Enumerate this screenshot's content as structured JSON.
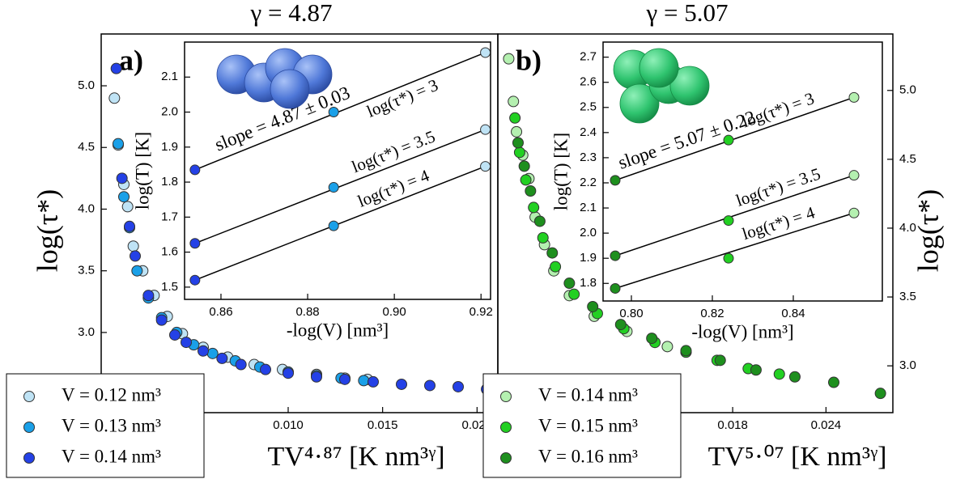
{
  "chart_data": [
    {
      "type": "scatter",
      "title": "γ = 4.87",
      "panel_label": "a)",
      "x_label": "TV⁴·⁸⁷ [K nm³ᵞ]",
      "y_label": "log(τ*)",
      "y_axis_side": "left",
      "legend": "lower left",
      "xlim": [
        0.0001,
        0.0211
      ],
      "xticks": [
        {
          "value": 0.01,
          "label": "0.010"
        },
        {
          "value": 0.015,
          "label": "0.015"
        },
        {
          "value": 0.02,
          "label": "0.020"
        }
      ],
      "ylim": [
        2.35,
        5.42
      ],
      "yticks": [
        {
          "value": 3,
          "label": "3.0"
        },
        3.5,
        {
          "value": 4,
          "label": "4.0"
        },
        4.5,
        {
          "value": 5,
          "label": "5.0"
        }
      ],
      "series": [
        {
          "name": "V = 0.12 nm³",
          "color": "#bfe3f5",
          "x": [
            0.0008,
            0.001,
            0.0013,
            0.0015,
            0.0018,
            0.0023,
            0.0029,
            0.0036,
            0.0044,
            0.0055,
            0.0068,
            0.0082,
            0.0097,
            0.0115,
            0.013,
            0.0142
          ],
          "values": [
            4.9,
            4.52,
            4.2,
            4.02,
            3.7,
            3.5,
            3.3,
            3.13,
            2.99,
            2.88,
            2.8,
            2.74,
            2.7,
            2.66,
            2.63,
            2.62
          ]
        },
        {
          "name": "V = 0.13 nm³",
          "color": "#1aa0e8",
          "x": [
            0.001,
            0.0013,
            0.0016,
            0.002,
            0.0026,
            0.0033,
            0.0041,
            0.005,
            0.006,
            0.0072,
            0.0085,
            0.01,
            0.0115,
            0.0128,
            0.014
          ],
          "values": [
            4.53,
            4.1,
            3.85,
            3.5,
            3.28,
            3.12,
            3,
            2.9,
            2.83,
            2.77,
            2.72,
            2.68,
            2.65,
            2.63,
            2.61
          ]
        },
        {
          "name": "V = 0.14 nm³",
          "color": "#2441e6",
          "x": [
            0.0009,
            0.0012,
            0.0016,
            0.0019,
            0.0026,
            0.0033,
            0.004,
            0.0046,
            0.0055,
            0.0065,
            0.0075,
            0.0088,
            0.01,
            0.0115,
            0.013,
            0.0145,
            0.016,
            0.0175,
            0.019,
            0.0205
          ],
          "values": [
            5.14,
            4.25,
            3.86,
            3.62,
            3.3,
            3.1,
            2.98,
            2.92,
            2.85,
            2.79,
            2.74,
            2.7,
            2.67,
            2.64,
            2.62,
            2.6,
            2.58,
            2.57,
            2.56,
            2.54
          ]
        }
      ]
    },
    {
      "type": "scatter",
      "inset": true,
      "x_label": "-log(V) [nm³]",
      "y_label": "log(T) [K]",
      "annotation": "slope = 4.87 ± 0.03",
      "xlim": [
        0.8516,
        0.9222
      ],
      "xticks": [
        0.86,
        0.88,
        {
          "value": 0.9,
          "label": "0.90"
        },
        0.92
      ],
      "ylim": [
        1.465,
        2.2
      ],
      "yticks": [
        1.5,
        1.6,
        1.7,
        1.8,
        1.9,
        {
          "value": 2,
          "label": "2.0"
        },
        2.1
      ],
      "x": [
        0.854,
        0.886,
        0.921
      ],
      "point_colors": [
        "#2441e6",
        "#1aa0e8",
        "#bfe3f5"
      ],
      "series": [
        {
          "name": "log(τ*) = 3",
          "values": [
            1.835,
            2.0,
            2.17
          ]
        },
        {
          "name": "log(τ*) = 3.5",
          "values": [
            1.625,
            1.785,
            1.95
          ]
        },
        {
          "name": "log(τ*) = 4",
          "values": [
            1.52,
            1.675,
            1.845
          ]
        }
      ]
    },
    {
      "type": "scatter",
      "title": "γ = 5.07",
      "panel_label": "b)",
      "x_label": "TV⁵·⁰⁷ [K nm³ᵞ]",
      "y_label": "log(τ*)",
      "y_axis_side": "right",
      "legend": "lower left",
      "xlim": [
        0.0029,
        0.0283
      ],
      "xticks": [
        0.018,
        0.024
      ],
      "ylim": [
        2.66,
        5.41
      ],
      "yticks": [
        {
          "value": 3,
          "label": "3.0"
        },
        3.5,
        {
          "value": 4,
          "label": "4.0"
        },
        4.5,
        {
          "value": 5,
          "label": "5.0"
        }
      ],
      "series": [
        {
          "name": "V = 0.14 nm³",
          "color": "#b4f0b0",
          "x": [
            0.0036,
            0.0039,
            0.0041,
            0.0045,
            0.0049,
            0.0053,
            0.0059,
            0.0065,
            0.0075,
            0.0091,
            0.0112,
            0.0138,
            0.015
          ],
          "values": [
            5.23,
            4.92,
            4.7,
            4.53,
            4.36,
            4.08,
            3.88,
            3.69,
            3.51,
            3.36,
            3.25,
            3.14,
            3.1
          ]
        },
        {
          "name": "V = 0.15 nm³",
          "color": "#22d022",
          "x": [
            0.004,
            0.0043,
            0.0047,
            0.0052,
            0.0058,
            0.0066,
            0.0078,
            0.0093,
            0.011,
            0.013,
            0.015,
            0.017,
            0.019,
            0.021
          ],
          "values": [
            4.8,
            4.55,
            4.35,
            4.15,
            3.93,
            3.72,
            3.52,
            3.38,
            3.27,
            3.17,
            3.1,
            3.04,
            2.98,
            2.94
          ]
        },
        {
          "name": "V = 0.16 nm³",
          "color": "#1e8f1e",
          "x": [
            0.0042,
            0.0046,
            0.005,
            0.0056,
            0.0064,
            0.0075,
            0.009,
            0.0108,
            0.0128,
            0.015,
            0.0172,
            0.0195,
            0.022,
            0.0245,
            0.0275
          ],
          "values": [
            4.62,
            4.45,
            4.27,
            4.05,
            3.82,
            3.6,
            3.43,
            3.3,
            3.2,
            3.11,
            3.04,
            2.97,
            2.92,
            2.88,
            2.8
          ]
        }
      ]
    },
    {
      "type": "scatter",
      "inset": true,
      "x_label": "-log(V) [nm³]",
      "y_label": "log(T) [K]",
      "annotation": "slope = 5.07 ± 0.22",
      "xlim": [
        0.793,
        0.862
      ],
      "xticks": [
        {
          "value": 0.8,
          "label": "0.80"
        },
        0.82,
        0.84
      ],
      "ylim": [
        1.73,
        2.76
      ],
      "yticks": [
        1.8,
        1.9,
        {
          "value": 2,
          "label": "2.0"
        },
        2.1,
        2.2,
        2.3,
        2.4,
        2.5,
        2.6,
        2.7
      ],
      "x": [
        0.796,
        0.824,
        0.855
      ],
      "point_colors": [
        "#1e8f1e",
        "#22d022",
        "#b4f0b0"
      ],
      "series": [
        {
          "name": "log(τ*) = 3",
          "values": [
            2.21,
            2.37,
            2.54
          ]
        },
        {
          "name": "log(τ*) = 3.5",
          "values": [
            1.91,
            2.05,
            2.23
          ]
        },
        {
          "name": "log(τ*) = 4",
          "values": [
            1.78,
            1.9,
            2.08
          ]
        }
      ]
    }
  ]
}
